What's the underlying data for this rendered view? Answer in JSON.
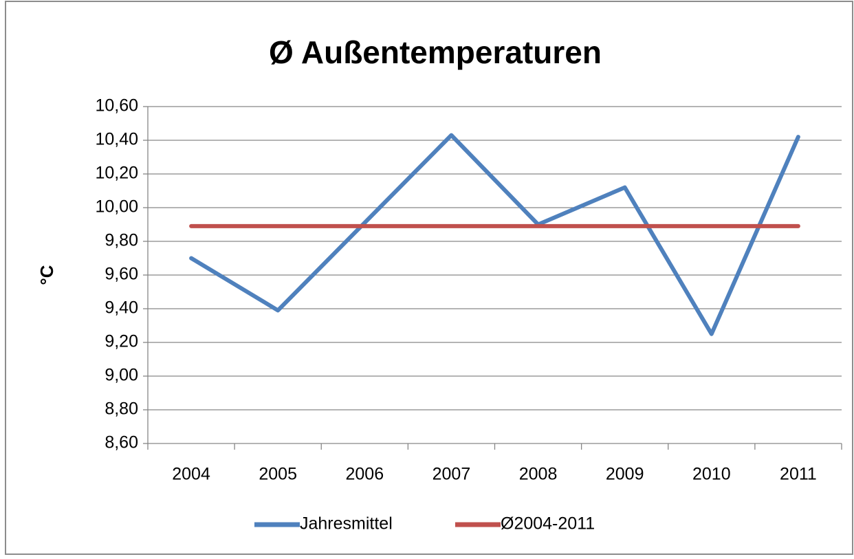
{
  "chart_data": {
    "type": "line",
    "title": "Ø Außentemperaturen",
    "y_label": "°C",
    "categories": [
      "2004",
      "2005",
      "2006",
      "2007",
      "2008",
      "2009",
      "2010",
      "2011"
    ],
    "series": [
      {
        "name": "Jahresmittel",
        "color": "#4f81bd",
        "values": [
          9.7,
          9.39,
          9.91,
          10.43,
          9.9,
          10.12,
          9.25,
          10.42
        ]
      },
      {
        "name": "Ø2004-2011",
        "color": "#c0504d",
        "values": [
          9.89,
          9.89,
          9.89,
          9.89,
          9.89,
          9.89,
          9.89,
          9.89
        ]
      }
    ],
    "ylim": [
      8.6,
      10.6
    ],
    "yticks": [
      {
        "value": 8.6,
        "label": "8,60"
      },
      {
        "value": 8.8,
        "label": "8,80"
      },
      {
        "value": 9.0,
        "label": "9,00"
      },
      {
        "value": 9.2,
        "label": "9,20"
      },
      {
        "value": 9.4,
        "label": "9,40"
      },
      {
        "value": 9.6,
        "label": "9,60"
      },
      {
        "value": 9.8,
        "label": "9,80"
      },
      {
        "value": 10.0,
        "label": "10,00"
      },
      {
        "value": 10.2,
        "label": "10,20"
      },
      {
        "value": 10.4,
        "label": "10,40"
      },
      {
        "value": 10.6,
        "label": "10,60"
      }
    ],
    "grid": true,
    "legend": "bottom"
  }
}
